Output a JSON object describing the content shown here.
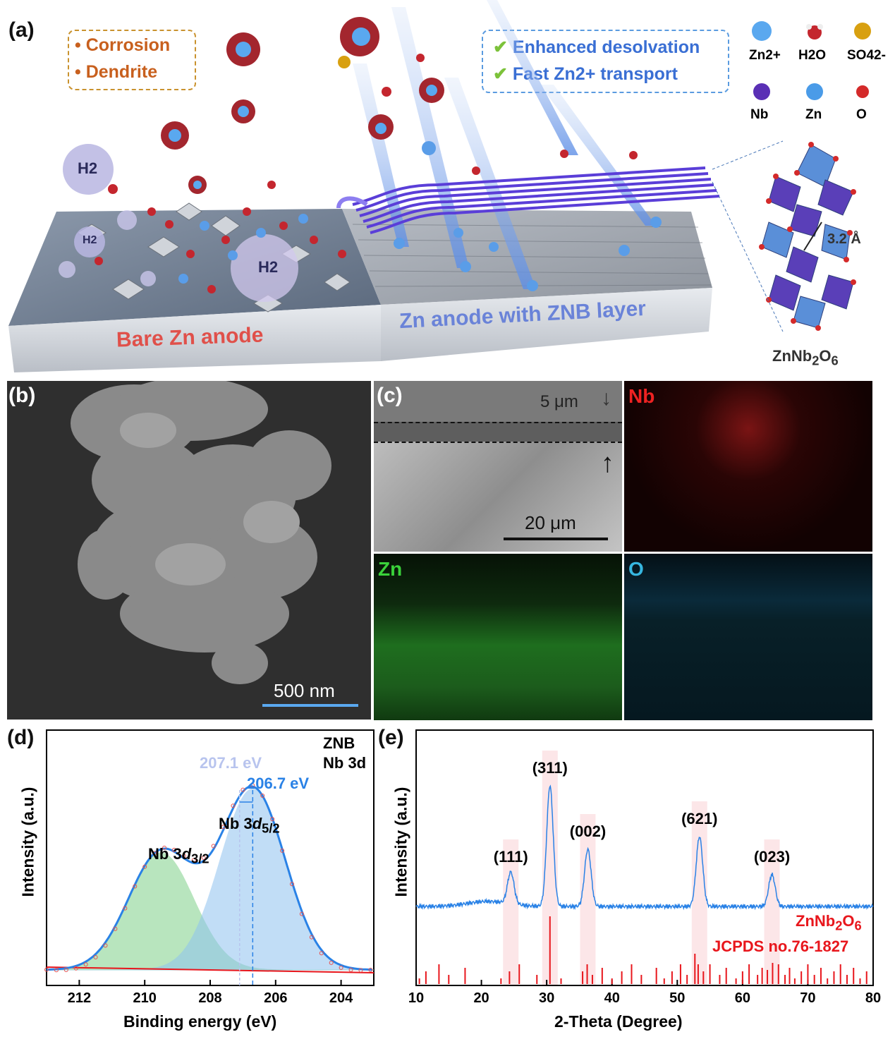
{
  "panel_a": {
    "label": "(a)",
    "issues": [
      "Corrosion",
      "Dendrite"
    ],
    "benefits": [
      "Enhanced desolvation",
      "Fast Zn2+ transport"
    ],
    "h2_label": "H2",
    "bare_label": "Bare Zn anode",
    "coated_label": "Zn anode with ZNB layer",
    "legend": [
      {
        "label": "Zn2+",
        "color": "#4a9be8"
      },
      {
        "label": "H2O",
        "color": "#c4262e"
      },
      {
        "label": "SO42-",
        "color": "#d8a010"
      },
      {
        "label": "Nb",
        "color": "#5a2fb5"
      },
      {
        "label": "Zn",
        "color": "#4a9be8"
      },
      {
        "label": "O",
        "color": "#d42a2a"
      }
    ],
    "spacing": "3.2 Å",
    "formula": "ZnNb2O6"
  },
  "panel_b": {
    "label": "(b)",
    "scalebar": "500 nm"
  },
  "panel_c": {
    "label": "(c)",
    "thickness": "5 μm",
    "scalebar": "20 μm",
    "maps": [
      "Nb",
      "Zn",
      "O"
    ]
  },
  "panel_d": {
    "label": "(d)",
    "sample": "ZNB",
    "region": "Nb 3d",
    "ref_energy": "207.1 eV",
    "peak_energy": "206.7 eV",
    "peak1": "Nb 3d3/2",
    "peak2": "Nb 3d5/2",
    "chart_data": {
      "type": "line",
      "xlabel": "Binding energy (eV)",
      "ylabel": "Intensity (a.u.)",
      "xlim": [
        213,
        203
      ],
      "xticks": [
        212,
        210,
        208,
        206,
        204
      ],
      "series": [
        {
          "name": "Nb 3d3/2",
          "center": 209.5,
          "height": 0.55,
          "color": "#7fd18a"
        },
        {
          "name": "Nb 3d5/2",
          "center": 206.7,
          "height": 0.85,
          "color": "#8fc3f0"
        }
      ]
    }
  },
  "panel_e": {
    "label": "(e)",
    "phase": "ZnNb2O6",
    "reference": "JCPDS no.76-1827",
    "chart_data": {
      "type": "line",
      "xlabel": "2-Theta (Degree)",
      "ylabel": "Intensity (a.u.)",
      "xlim": [
        10,
        80
      ],
      "xticks": [
        10,
        20,
        30,
        40,
        50,
        60,
        70,
        80
      ],
      "peaks": [
        {
          "label": "(111)",
          "x": 24.5,
          "h": 0.25
        },
        {
          "label": "(311)",
          "x": 30.5,
          "h": 0.95
        },
        {
          "label": "(002)",
          "x": 36.3,
          "h": 0.45
        },
        {
          "label": "(621)",
          "x": 53.4,
          "h": 0.55
        },
        {
          "label": "(023)",
          "x": 64.5,
          "h": 0.25
        }
      ],
      "reference_lines": [
        10.5,
        11.5,
        13.5,
        15,
        17.5,
        23,
        24.3,
        25.8,
        28.5,
        30.5,
        32.2,
        35.5,
        36.2,
        37,
        38.5,
        40,
        41.5,
        43,
        44.5,
        46.8,
        48,
        49.2,
        50.5,
        51.5,
        52.7,
        53.2,
        54,
        55,
        56.5,
        57.5,
        59,
        60,
        61,
        62.3,
        63,
        63.8,
        64.6,
        65.5,
        66.5,
        67.2,
        68,
        69,
        70,
        71,
        72,
        73,
        74,
        75,
        76,
        77,
        78,
        79
      ]
    }
  }
}
